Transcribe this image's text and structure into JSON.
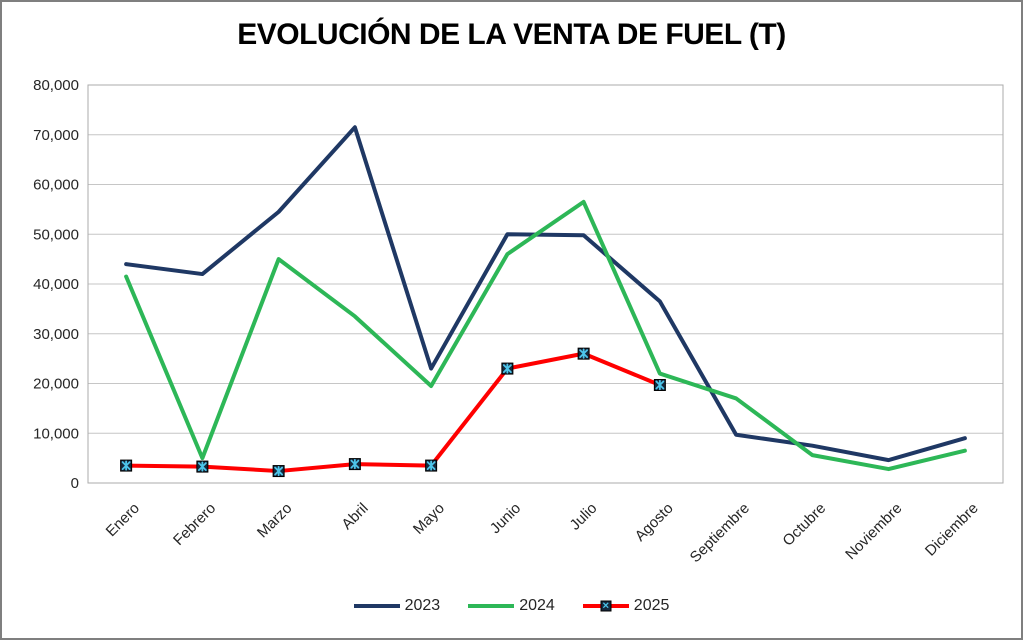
{
  "title": "EVOLUCIÓN DE LA VENTA DE FUEL (T)",
  "chart_data": {
    "type": "line",
    "title": "EVOLUCIÓN DE LA VENTA DE FUEL (T)",
    "categories": [
      "Enero",
      "Febrero",
      "Marzo",
      "Abril",
      "Mayo",
      "Junio",
      "Julio",
      "Agosto",
      "Septiembre",
      "Octubre",
      "Noviembre",
      "Diciembre"
    ],
    "series": [
      {
        "name": "2023",
        "color": "#1F3864",
        "marker": false,
        "values": [
          44000,
          42000,
          54500,
          71500,
          23000,
          50000,
          49800,
          36500,
          9700,
          7500,
          4600,
          9000
        ]
      },
      {
        "name": "2024",
        "color": "#2DB757",
        "marker": false,
        "values": [
          41500,
          5000,
          45000,
          33500,
          19500,
          46000,
          56500,
          22000,
          17000,
          5600,
          2800,
          6500
        ]
      },
      {
        "name": "2025",
        "color": "#FF0000",
        "marker": true,
        "values": [
          3500,
          3300,
          2400,
          3800,
          3500,
          23000,
          26000,
          19700
        ]
      }
    ],
    "xlabel": "",
    "ylabel": "",
    "ylim": [
      0,
      80000
    ],
    "ytick_step": 10000,
    "y_tick_labels": [
      "0",
      "10,000",
      "20,000",
      "30,000",
      "40,000",
      "50,000",
      "60,000",
      "70,000",
      "80,000"
    ],
    "grid": true,
    "legend_position": "bottom",
    "marker_style": {
      "square_fill": "#16293D",
      "x_color": "#4DC5EA",
      "glyph": "✕"
    },
    "colors": {
      "gridline": "#C6C6C6",
      "plot_border": "#ABABAB",
      "text": "#262626"
    }
  }
}
